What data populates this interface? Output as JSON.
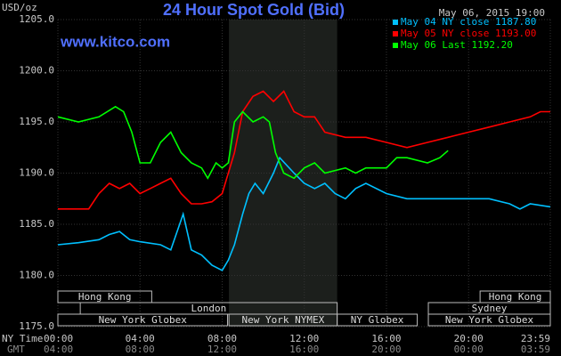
{
  "chart_data": {
    "type": "line",
    "title": "24 Hour Spot Gold (Bid)",
    "y_label": "USD/oz",
    "website": "www.kitco.com",
    "timestamp": "May 06, 2015 19:00",
    "x_label": "NY Time",
    "x2_label": "GMT",
    "xlim": [
      0,
      23.98
    ],
    "ylim": [
      1175,
      1205
    ],
    "yticks": [
      {
        "value": 1175,
        "label": "1175.0"
      },
      {
        "value": 1180,
        "label": "1180.0"
      },
      {
        "value": 1185,
        "label": "1185.0"
      },
      {
        "value": 1190,
        "label": "1190.0"
      },
      {
        "value": 1195,
        "label": "1195.0"
      },
      {
        "value": 1200,
        "label": "1200.0"
      },
      {
        "value": 1205,
        "label": "1205.0"
      }
    ],
    "xticks": [
      {
        "value": 0,
        "label": "00:00"
      },
      {
        "value": 4,
        "label": "04:00"
      },
      {
        "value": 8,
        "label": "08:00"
      },
      {
        "value": 12,
        "label": "12:00"
      },
      {
        "value": 16,
        "label": "16:00"
      },
      {
        "value": 20,
        "label": "20:00"
      },
      {
        "value": 23.98,
        "label": "23:59"
      }
    ],
    "gmt_tick_labels": [
      "04:00",
      "08:00",
      "12:00",
      "16:00",
      "20:00",
      "00:00",
      "03:59"
    ],
    "grid": true,
    "highlight": [
      8.33,
      13.6
    ],
    "session_rows": [
      [
        {
          "label": "Hong Kong",
          "start": 0,
          "end": 4.57
        },
        {
          "label": "Hong Kong",
          "start": 20.56,
          "end": 23.98
        }
      ],
      [
        {
          "label": "London",
          "start": 1.09,
          "end": 13.6
        },
        {
          "label": "Sydney",
          "start": 18.04,
          "end": 23.98
        }
      ],
      [
        {
          "label": "New York Globex",
          "start": 0,
          "end": 8.26
        },
        {
          "label": "New York NYMEX",
          "start": 8.33,
          "end": 13.6
        },
        {
          "label": "NY Globex",
          "start": 13.6,
          "end": 17.5
        },
        {
          "label": "New York Globex",
          "start": 18.04,
          "end": 23.98
        }
      ]
    ],
    "series": [
      {
        "name": "May 04 NY close 1187.80",
        "color": "#00c0ff",
        "x": [
          0,
          1,
          2,
          2.5,
          3,
          3.5,
          4,
          5,
          5.5,
          6.1,
          6.5,
          7,
          7.5,
          8,
          8.3,
          8.6,
          9,
          9.3,
          9.6,
          10,
          10.5,
          10.8,
          11.5,
          12,
          12.5,
          13,
          13.5,
          14,
          14.5,
          15,
          16,
          17,
          18,
          19,
          20,
          21,
          22,
          22.5,
          23,
          23.98
        ],
        "values": [
          1183,
          1183.2,
          1183.5,
          1184,
          1184.3,
          1183.5,
          1183.3,
          1183,
          1182.5,
          1186,
          1182.5,
          1182,
          1181,
          1180.5,
          1181.5,
          1183,
          1186,
          1188,
          1189,
          1188,
          1190,
          1191.5,
          1190,
          1189,
          1188.5,
          1189,
          1188,
          1187.5,
          1188.5,
          1189,
          1188,
          1187.5,
          1187.5,
          1187.5,
          1187.5,
          1187.5,
          1187,
          1186.5,
          1187,
          1186.7
        ]
      },
      {
        "name": "May 05 NY close 1193.00",
        "color": "#ff0000",
        "x": [
          0,
          1.5,
          2,
          2.5,
          3,
          3.5,
          4,
          4.5,
          5,
          5.5,
          6,
          6.5,
          7,
          7.5,
          8,
          8.3,
          8.6,
          9,
          9.5,
          10,
          10.5,
          11,
          11.5,
          12,
          12.5,
          13,
          14,
          15,
          16,
          17,
          18,
          19,
          20,
          21,
          22,
          23,
          23.5,
          23.98
        ],
        "values": [
          1186.5,
          1186.5,
          1188,
          1189,
          1188.5,
          1189,
          1188,
          1188.5,
          1189,
          1189.5,
          1188,
          1187,
          1187,
          1187.2,
          1188,
          1190,
          1192,
          1196,
          1197.5,
          1198,
          1197,
          1198,
          1196,
          1195.5,
          1195.5,
          1194,
          1193.5,
          1193.5,
          1193,
          1192.5,
          1193,
          1193.5,
          1194,
          1194.5,
          1195,
          1195.5,
          1196,
          1196
        ]
      },
      {
        "name": "May 06 Last 1192.20",
        "color": "#00ff00",
        "x": [
          0,
          1,
          2,
          2.8,
          3.2,
          3.6,
          4,
          4.5,
          5,
          5.5,
          6,
          6.5,
          7,
          7.3,
          7.7,
          8,
          8.3,
          8.6,
          9,
          9.5,
          10,
          10.3,
          10.6,
          11,
          11.5,
          12,
          12.5,
          13,
          14,
          14.5,
          15,
          16,
          16.5,
          17,
          18,
          18.6,
          19
        ],
        "values": [
          1195.5,
          1195,
          1195.5,
          1196.5,
          1196,
          1194,
          1191,
          1191,
          1193,
          1194,
          1192,
          1191,
          1190.5,
          1189.5,
          1191,
          1190.5,
          1191,
          1195,
          1196,
          1195,
          1195.5,
          1195,
          1192,
          1190,
          1189.5,
          1190.5,
          1191,
          1190,
          1190.5,
          1190,
          1190.5,
          1190.5,
          1191.5,
          1191.5,
          1191,
          1191.5,
          1192.2
        ]
      }
    ]
  }
}
